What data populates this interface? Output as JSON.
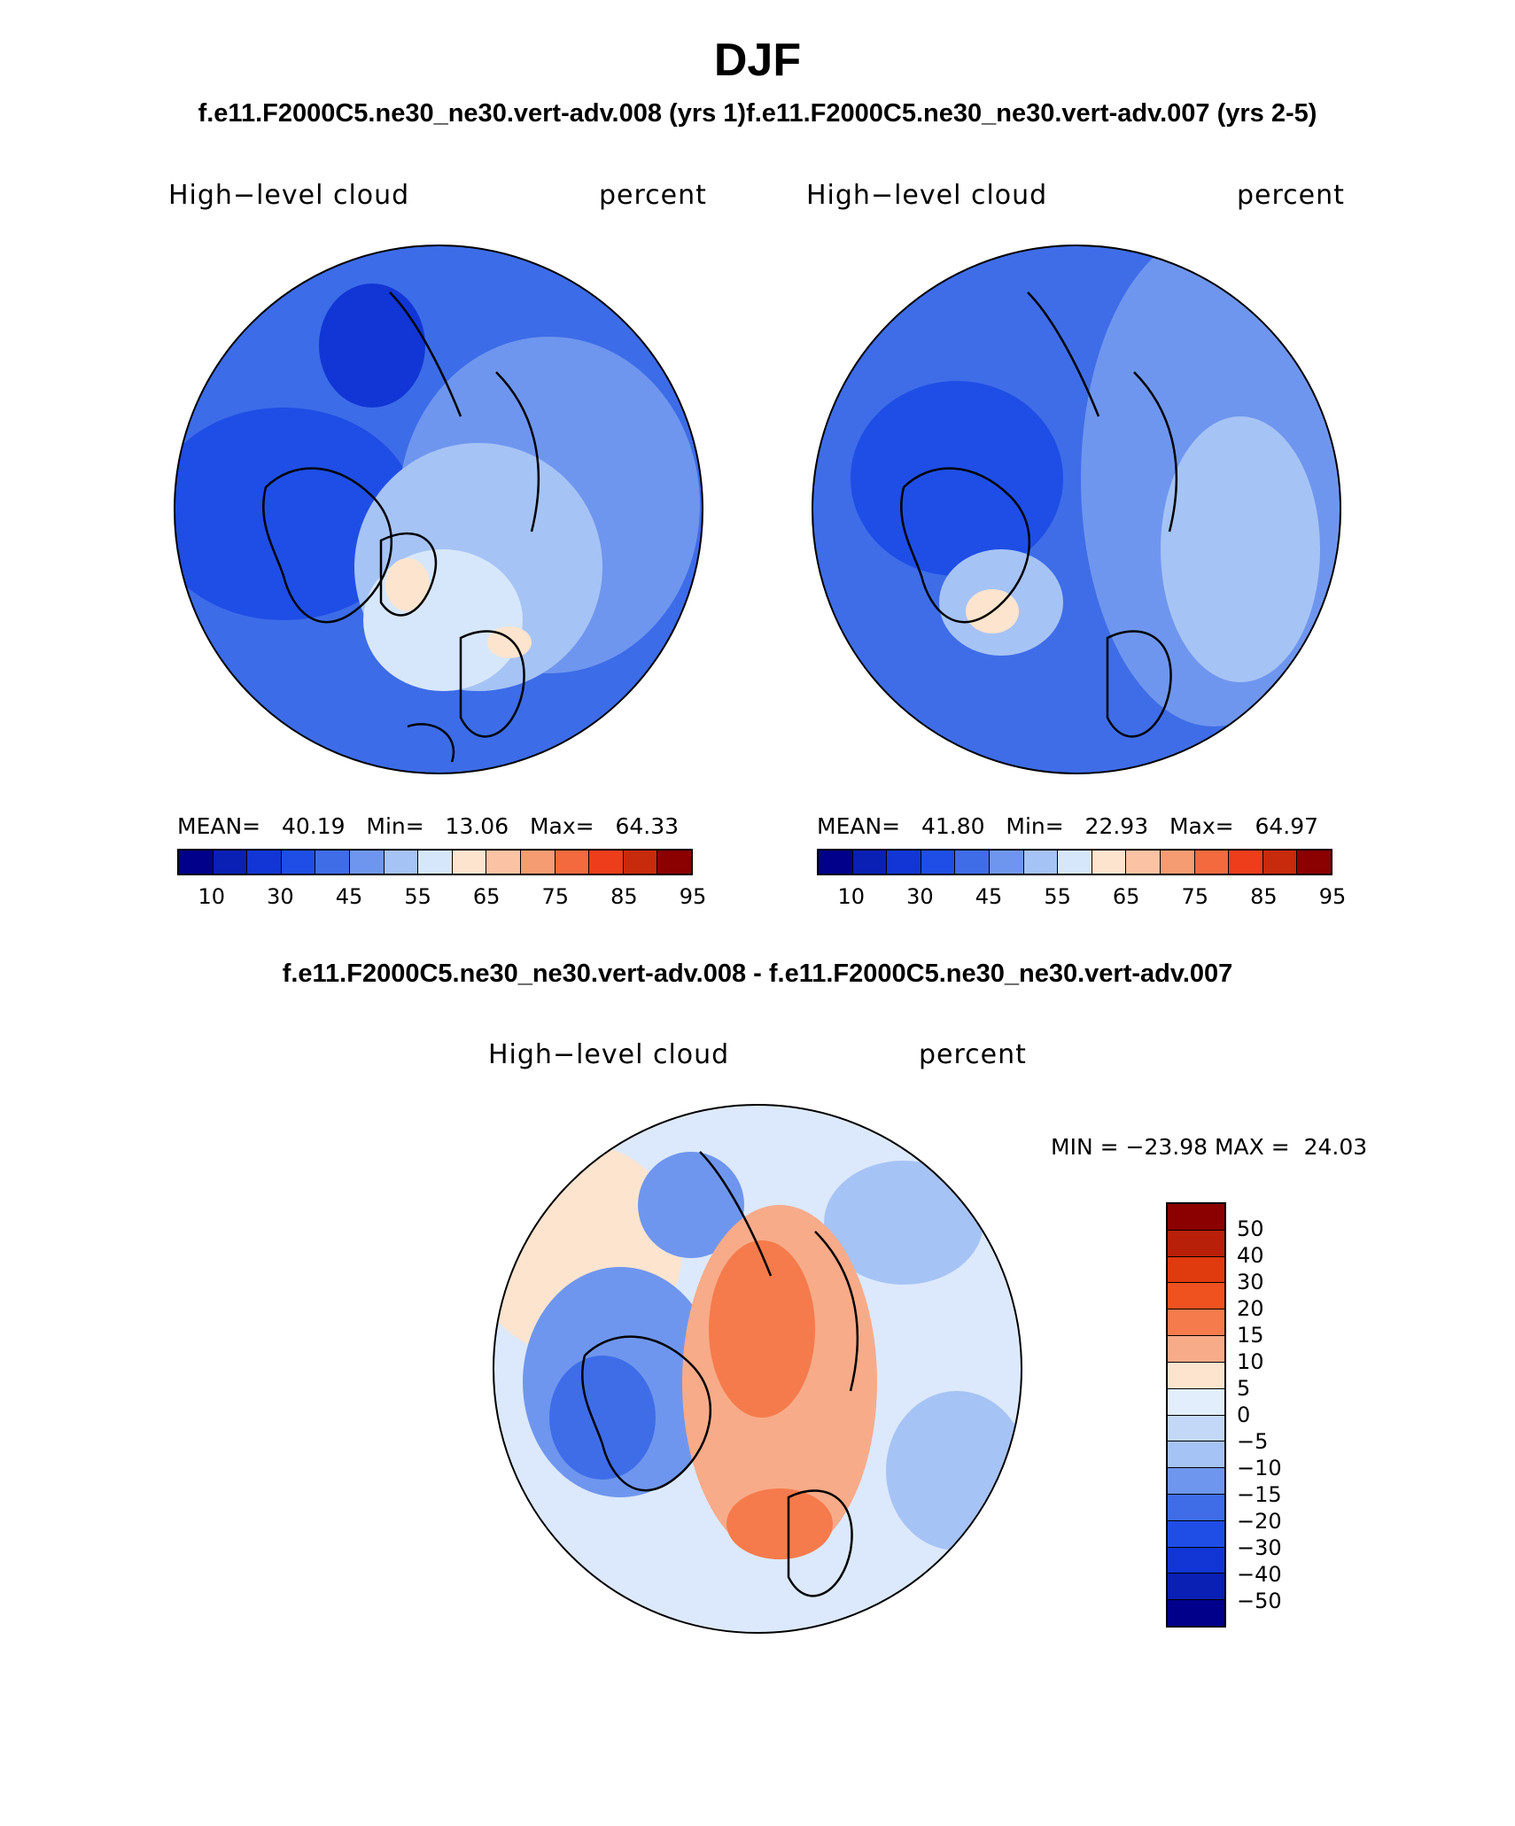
{
  "figure": {
    "season": "DJF",
    "subtitle": "f.e11.F2000C5.ne30_ne30.vert-adv.008 (yrs 1)f.e11.F2000C5.ne30_ne30.vert-adv.007 (yrs 2-5)",
    "diff_title": "f.e11.F2000C5.ne30_ne30.vert-adv.008 - f.e11.F2000C5.ne30_ne30.vert-adv.007"
  },
  "panel1": {
    "variable": "High−level cloud",
    "units": "percent",
    "mean_label": "MEAN=",
    "mean": "40.19",
    "min_label": "Min=",
    "min": "13.06",
    "max_label": "Max=",
    "max": "64.33"
  },
  "panel2": {
    "variable": "High−level cloud",
    "units": "percent",
    "mean_label": "MEAN=",
    "mean": "41.80",
    "min_label": "Min=",
    "min": "22.93",
    "max_label": "Max=",
    "max": "64.97"
  },
  "panel3": {
    "variable": "High−level cloud",
    "units": "percent",
    "min_label": "MIN =",
    "min": "−23.98",
    "max_label": "MAX =",
    "max": "24.03"
  },
  "colorbar_abs": {
    "colors": [
      "#00008b",
      "#0a1fb4",
      "#1136d5",
      "#1f4ee6",
      "#3f6de8",
      "#6f96ee",
      "#a6c3f5",
      "#d7e7fb",
      "#fde4cf",
      "#fbc2a3",
      "#f59c72",
      "#f26a3e",
      "#ee3d1a",
      "#c82a0c",
      "#8b0000"
    ],
    "ticks": [
      "10",
      "30",
      "45",
      "55",
      "65",
      "75",
      "85",
      "95"
    ]
  },
  "colorbar_diff": {
    "colors": [
      "#8b0000",
      "#b8200a",
      "#e03a0f",
      "#ef521e",
      "#f57b4c",
      "#f8ab89",
      "#fde4cf",
      "#e3eefc",
      "#c3d8f7",
      "#a6c3f5",
      "#6f96ee",
      "#3f6de8",
      "#1f4ee6",
      "#1136d5",
      "#0a1fb4",
      "#00008b"
    ],
    "ticks": [
      "50",
      "40",
      "30",
      "20",
      "15",
      "10",
      "5",
      "0",
      "−5",
      "−10",
      "−15",
      "−20",
      "−30",
      "−40",
      "−50"
    ]
  },
  "map_fills": {
    "panel1_base": "#3d6ce8",
    "panel2_base": "#3f6de8",
    "panel3_base": "#dce9fc"
  }
}
